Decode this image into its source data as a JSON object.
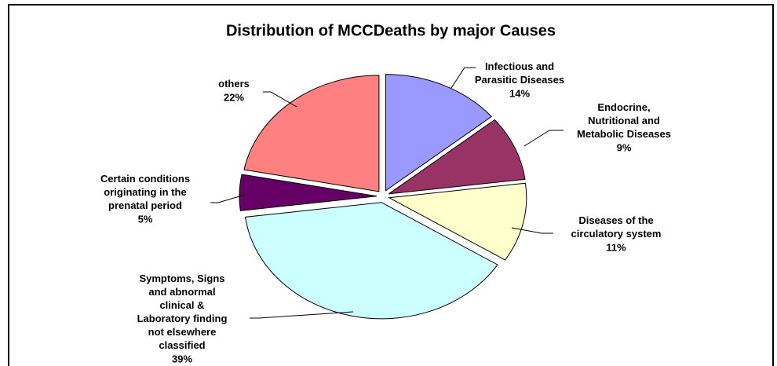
{
  "chart_data": {
    "type": "pie",
    "title": "Distribution of MCCDeaths by major Causes",
    "categories": [
      "Infectious and\nParasitic Diseases",
      "Endocrine,\nNutritional and\nMetabolic Diseases",
      "Diseases of the\ncirculatory system",
      "Symptoms, Signs\nand abnormal\nclinical &\nLaboratory finding\nnot elsewhere\nclassified",
      "Certain conditions\noriginating in the\nprenatal period",
      "others"
    ],
    "values": [
      14,
      9,
      11,
      39,
      5,
      22
    ],
    "value_labels": [
      "14%",
      "9%",
      "11%",
      "39%",
      "5%",
      "22%"
    ],
    "colors": [
      "#9999ff",
      "#993366",
      "#ffffcc",
      "#ccffff",
      "#660066",
      "#ff8080"
    ]
  }
}
